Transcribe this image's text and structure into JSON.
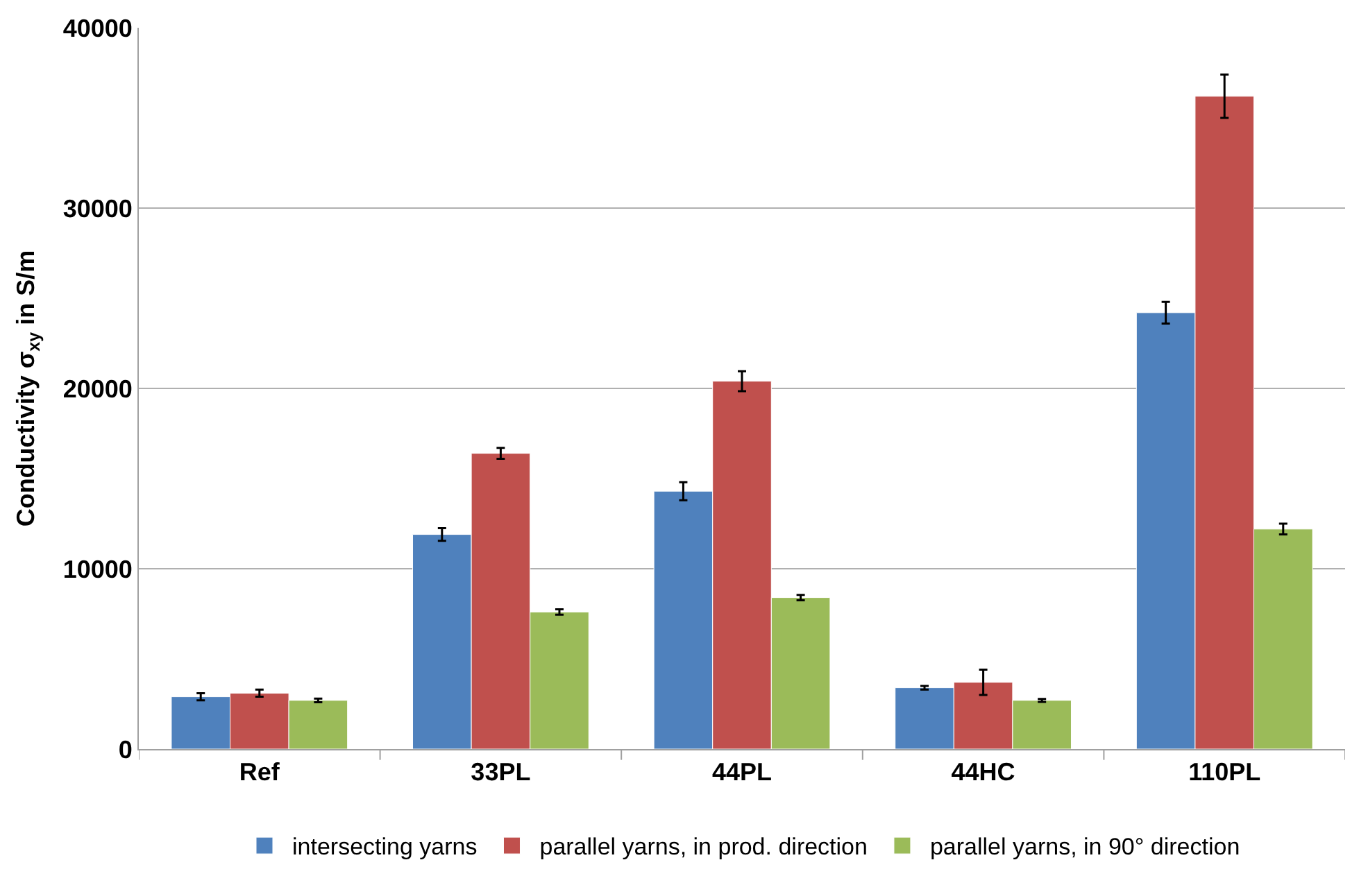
{
  "chart_data": {
    "type": "bar",
    "ylabel": "Conductivity σ$_{xy}$ in S/m",
    "categories": [
      "Ref",
      "33PL",
      "44PL",
      "44HC",
      "110PL"
    ],
    "series": [
      {
        "name": "intersecting yarns",
        "color": "#4f81bd",
        "values": [
          2900,
          11900,
          14300,
          3400,
          24200
        ],
        "errors": [
          200,
          350,
          500,
          100,
          600
        ]
      },
      {
        "name": "parallel yarns, in prod. direction",
        "color": "#c0504d",
        "values": [
          3100,
          16400,
          20400,
          3700,
          36200
        ],
        "errors": [
          200,
          300,
          550,
          700,
          1200
        ]
      },
      {
        "name": "parallel yarns, in 90° direction",
        "color": "#9bbb59",
        "values": [
          2700,
          7600,
          8400,
          2700,
          12200
        ],
        "errors": [
          100,
          150,
          150,
          80,
          300
        ]
      }
    ],
    "ylim": [
      0,
      40000
    ],
    "yticks": [
      0,
      10000,
      20000,
      30000,
      40000
    ],
    "grid": "y",
    "legend": "bottom"
  }
}
